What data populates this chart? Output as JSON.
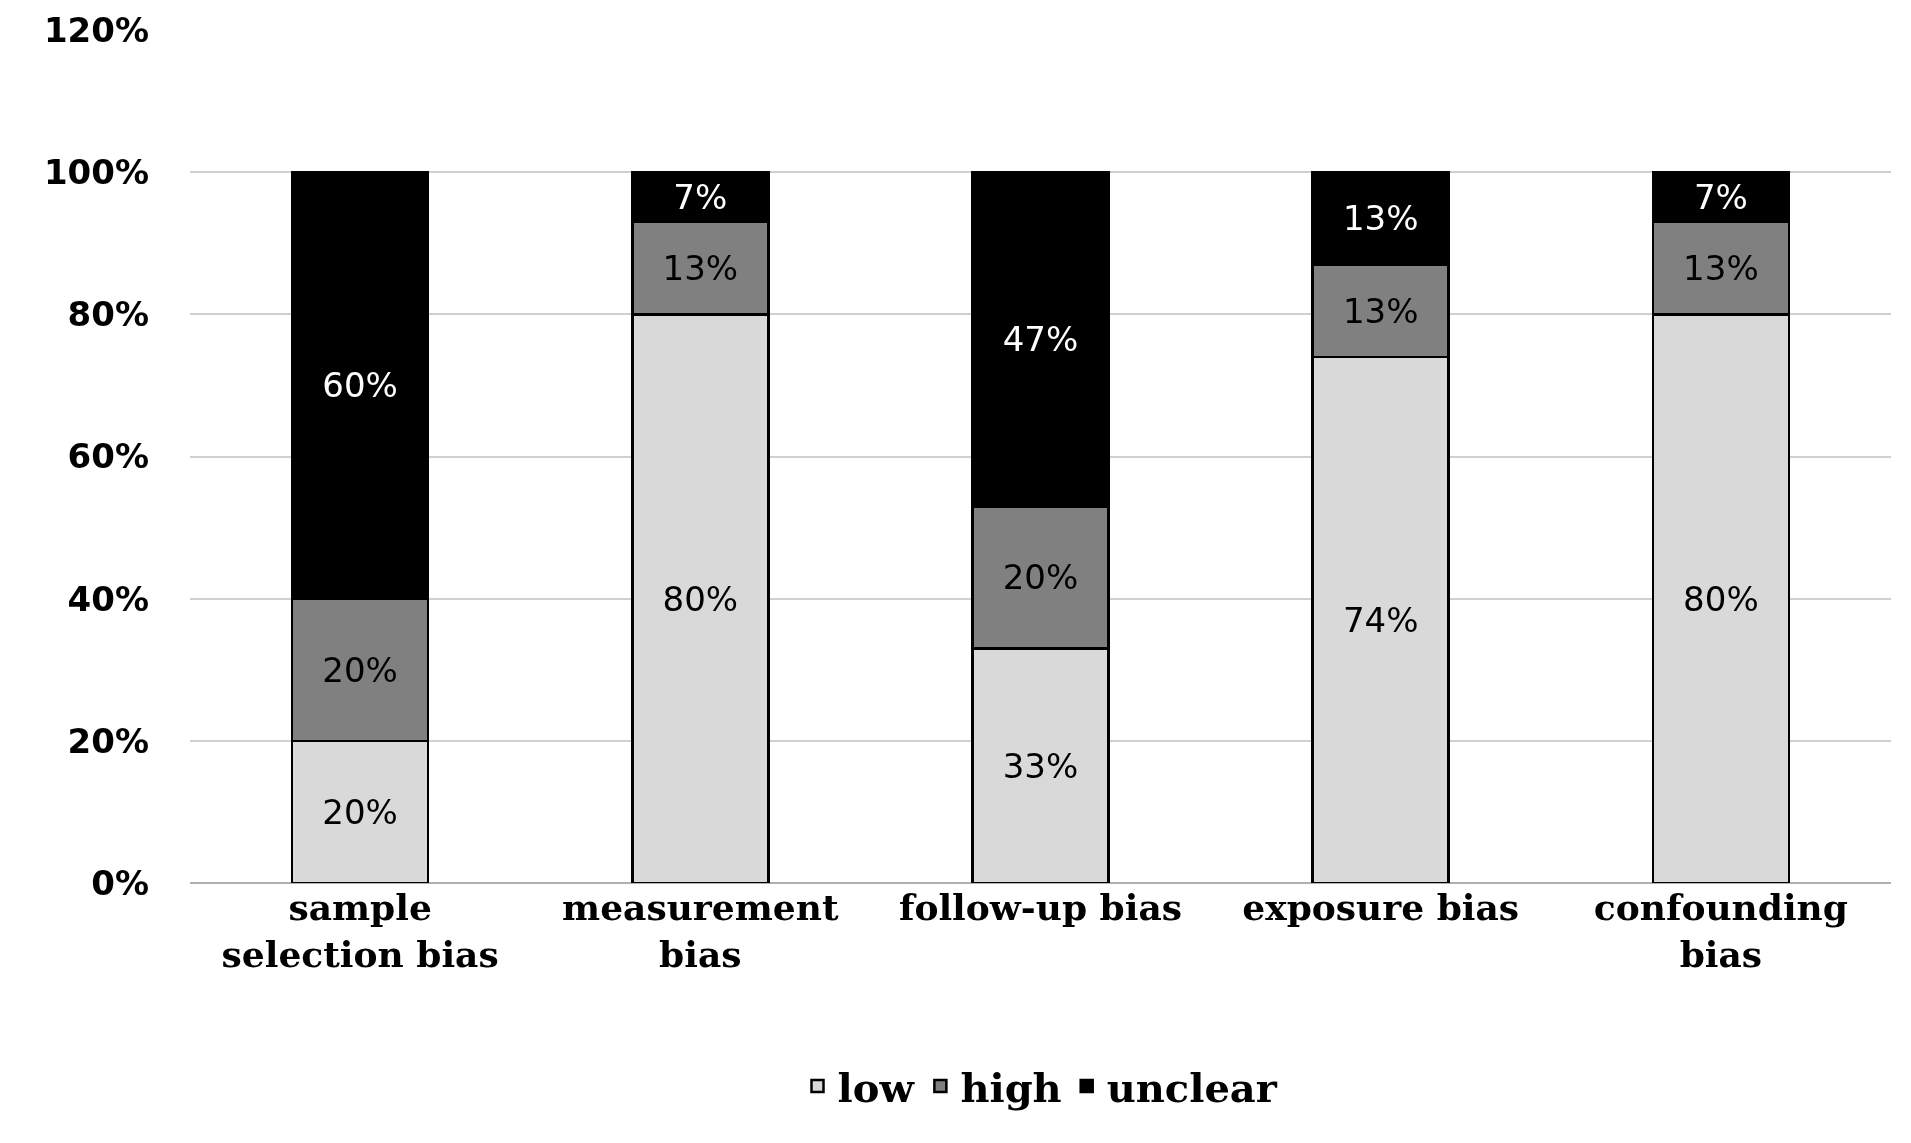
{
  "chart_data": {
    "type": "bar",
    "stacked": true,
    "categories": [
      "sample selection bias",
      "measurement bias",
      "follow-up bias",
      "exposure bias",
      "confounding bias"
    ],
    "series": [
      {
        "name": "low",
        "color": "#d9d9d9",
        "values": [
          20,
          80,
          33,
          74,
          80
        ],
        "value_labels": [
          "20%",
          "80%",
          "33%",
          "74%",
          "80%"
        ]
      },
      {
        "name": "high",
        "color": "#808080",
        "values": [
          20,
          13,
          20,
          13,
          13
        ],
        "value_labels": [
          "20%",
          "13%",
          "20%",
          "13%",
          "13%"
        ]
      },
      {
        "name": "unclear",
        "color": "#000000",
        "values": [
          60,
          7,
          47,
          13,
          7
        ],
        "value_labels": [
          "60%",
          "7%",
          "47%",
          "13%",
          "7%"
        ]
      }
    ],
    "ylim": [
      0,
      120
    ],
    "yticks": [
      {
        "value": 0,
        "label": "0%"
      },
      {
        "value": 20,
        "label": "20%"
      },
      {
        "value": 40,
        "label": "40%"
      },
      {
        "value": 60,
        "label": "60%"
      },
      {
        "value": 80,
        "label": "80%"
      },
      {
        "value": 100,
        "label": "100%"
      },
      {
        "value": 120,
        "label": "120%"
      }
    ],
    "grid": "y",
    "legend": "bottom"
  }
}
